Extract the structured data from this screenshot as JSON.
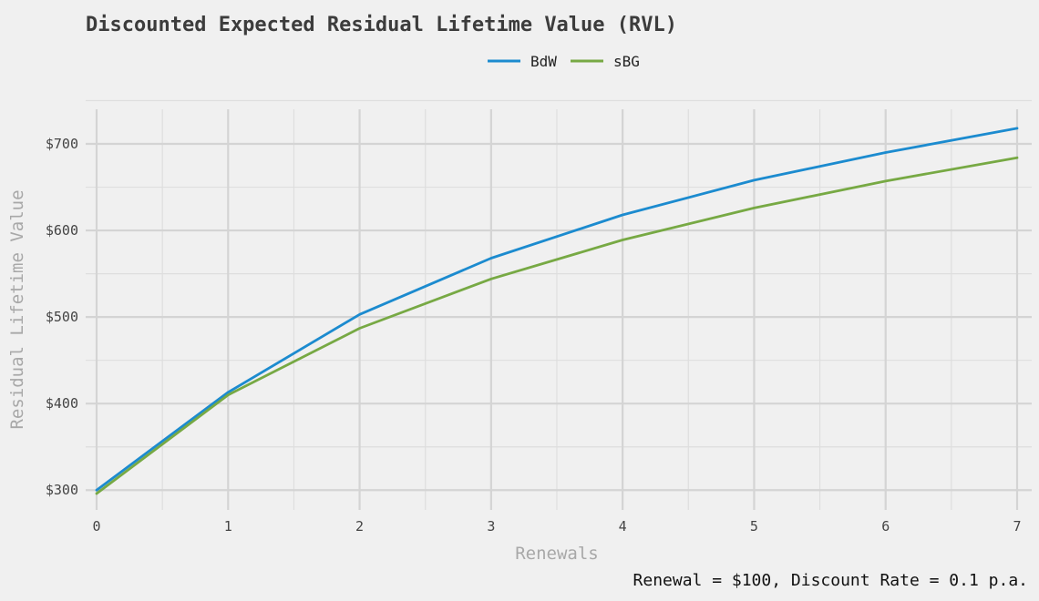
{
  "chart_data": {
    "type": "line",
    "title": "Discounted Expected Residual Lifetime Value (RVL)",
    "xlabel": "Renewals",
    "ylabel": "Residual Lifetime Value",
    "caption": "Renewal = $100, Discount Rate = 0.1 p.a.",
    "x": [
      0,
      1,
      2,
      3,
      4,
      5,
      6,
      7
    ],
    "xlim": [
      0,
      7
    ],
    "ylim": [
      295,
      740
    ],
    "x_ticks": [
      "0",
      "1",
      "2",
      "3",
      "4",
      "5",
      "6",
      "7"
    ],
    "y_ticks": [
      300,
      400,
      500,
      600,
      700
    ],
    "y_tick_labels": [
      "$300",
      "$400",
      "$500",
      "$600",
      "$700"
    ],
    "grid": true,
    "legend_position": "top",
    "series": [
      {
        "name": "BdW",
        "color": "#1c8bcf",
        "values": [
          300,
          413,
          503,
          568,
          618,
          658,
          690,
          718
        ]
      },
      {
        "name": "sBG",
        "color": "#77a944",
        "values": [
          296,
          410,
          487,
          544,
          589,
          626,
          657,
          684
        ]
      }
    ]
  }
}
